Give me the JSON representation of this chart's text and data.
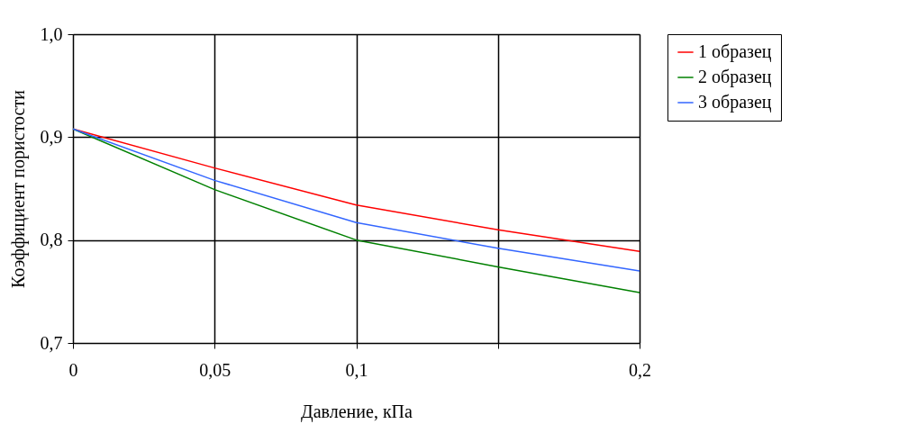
{
  "chart_data": {
    "type": "line",
    "xlabel": "Давление, кПа",
    "ylabel": "Коэффициент пористости",
    "x": [
      0,
      0.05,
      0.1,
      0.15,
      0.2
    ],
    "series": [
      {
        "name": "1 образец",
        "color": "#ff0000",
        "values": [
          0.908,
          0.87,
          0.834,
          0.81,
          0.789
        ]
      },
      {
        "name": "2 образец",
        "color": "#008000",
        "values": [
          0.908,
          0.849,
          0.8,
          0.774,
          0.749
        ]
      },
      {
        "name": "3 образец",
        "color": "#3366ff",
        "values": [
          0.908,
          0.858,
          0.817,
          0.792,
          0.77
        ]
      }
    ],
    "xlim": [
      0,
      0.2
    ],
    "xticks": [
      0,
      {
        "value": 0.05,
        "label": "0,05"
      },
      {
        "value": 0.1,
        "label": "0,1"
      },
      {
        "value": 0.15,
        "label": null
      },
      {
        "value": 0.2,
        "label": "0,2"
      }
    ],
    "ylim": [
      0.7,
      1.0
    ],
    "yticks": [
      {
        "value": 0.7,
        "label": "0,7"
      },
      {
        "value": 0.8,
        "label": "0,8"
      },
      {
        "value": 0.9,
        "label": "0,9"
      },
      {
        "value": 1.0,
        "label": "1,0"
      }
    ],
    "grid": true,
    "legend": "right",
    "marker": "none",
    "line_style": "solid"
  }
}
